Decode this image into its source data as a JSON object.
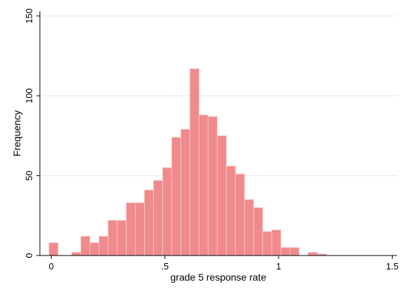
{
  "chart_data": {
    "type": "bar",
    "subtype": "histogram",
    "xlabel": "grade 5 response rate",
    "ylabel": "Frequency",
    "xlim": [
      -0.05,
      1.52
    ],
    "ylim": [
      0,
      153
    ],
    "xticks": [
      {
        "value": 0,
        "label": "0"
      },
      {
        "value": 0.5,
        "label": ".5"
      },
      {
        "value": 1,
        "label": "1"
      },
      {
        "value": 1.5,
        "label": "1.5"
      }
    ],
    "yticks": [
      {
        "value": 0,
        "label": "0"
      },
      {
        "value": 50,
        "label": "50"
      },
      {
        "value": 100,
        "label": "100"
      },
      {
        "value": 150,
        "label": "150"
      }
    ],
    "grid": true,
    "bar_color": "#f08a8c",
    "bin_width": 0.04,
    "bins": [
      {
        "x0": -0.01,
        "value": 8
      },
      {
        "x0": 0.03,
        "value": 0
      },
      {
        "x0": 0.07,
        "value": 0
      },
      {
        "x0": 0.09,
        "value": 2
      },
      {
        "x0": 0.13,
        "value": 12
      },
      {
        "x0": 0.17,
        "value": 8
      },
      {
        "x0": 0.21,
        "value": 12
      },
      {
        "x0": 0.25,
        "value": 22
      },
      {
        "x0": 0.29,
        "value": 22
      },
      {
        "x0": 0.33,
        "value": 33
      },
      {
        "x0": 0.37,
        "value": 33
      },
      {
        "x0": 0.41,
        "value": 41
      },
      {
        "x0": 0.45,
        "value": 47
      },
      {
        "x0": 0.49,
        "value": 55
      },
      {
        "x0": 0.53,
        "value": 74
      },
      {
        "x0": 0.57,
        "value": 79
      },
      {
        "x0": 0.61,
        "value": 117
      },
      {
        "x0": 0.65,
        "value": 88
      },
      {
        "x0": 0.69,
        "value": 87
      },
      {
        "x0": 0.73,
        "value": 75
      },
      {
        "x0": 0.77,
        "value": 56
      },
      {
        "x0": 0.81,
        "value": 51
      },
      {
        "x0": 0.85,
        "value": 35
      },
      {
        "x0": 0.89,
        "value": 30
      },
      {
        "x0": 0.93,
        "value": 15
      },
      {
        "x0": 0.97,
        "value": 16
      },
      {
        "x0": 1.01,
        "value": 5
      },
      {
        "x0": 1.05,
        "value": 5
      },
      {
        "x0": 1.09,
        "value": 0
      },
      {
        "x0": 1.13,
        "value": 2
      },
      {
        "x0": 1.17,
        "value": 1
      }
    ]
  }
}
